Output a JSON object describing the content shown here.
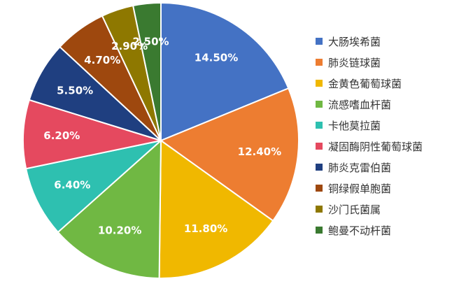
{
  "chart_data": {
    "type": "pie",
    "slices": [
      {
        "label": "大肠埃希菌",
        "value": 14.5,
        "display": "14.50%",
        "color": "#4472C4"
      },
      {
        "label": "肺炎链球菌",
        "value": 12.4,
        "display": "12.40%",
        "color": "#ED7D31"
      },
      {
        "label": "金黄色葡萄球菌",
        "value": 11.8,
        "display": "11.80%",
        "color": "#F0B800"
      },
      {
        "label": "流感嗜血杆菌",
        "value": 10.2,
        "display": "10.20%",
        "color": "#70B843"
      },
      {
        "label": "卡他莫拉菌",
        "value": 6.4,
        "display": "6.40%",
        "color": "#2EC0B0"
      },
      {
        "label": "凝固酶阴性葡萄球菌",
        "value": 6.2,
        "display": "6.20%",
        "color": "#E5495F"
      },
      {
        "label": "肺炎克雷伯菌",
        "value": 5.5,
        "display": "5.50%",
        "color": "#1F3F80"
      },
      {
        "label": "铜绿假单胞菌",
        "value": 4.7,
        "display": "4.70%",
        "color": "#9E480E"
      },
      {
        "label": "沙门氏菌属",
        "value": 2.9,
        "display": "2.90%",
        "color": "#8E7800"
      },
      {
        "label": "鲍曼不动杆菌",
        "value": 2.5,
        "display": "2.50%",
        "color": "#3A7A30"
      }
    ],
    "start_angle": "12 o'clock",
    "direction": "clockwise",
    "legend_position": "right",
    "labels_inside": true
  }
}
